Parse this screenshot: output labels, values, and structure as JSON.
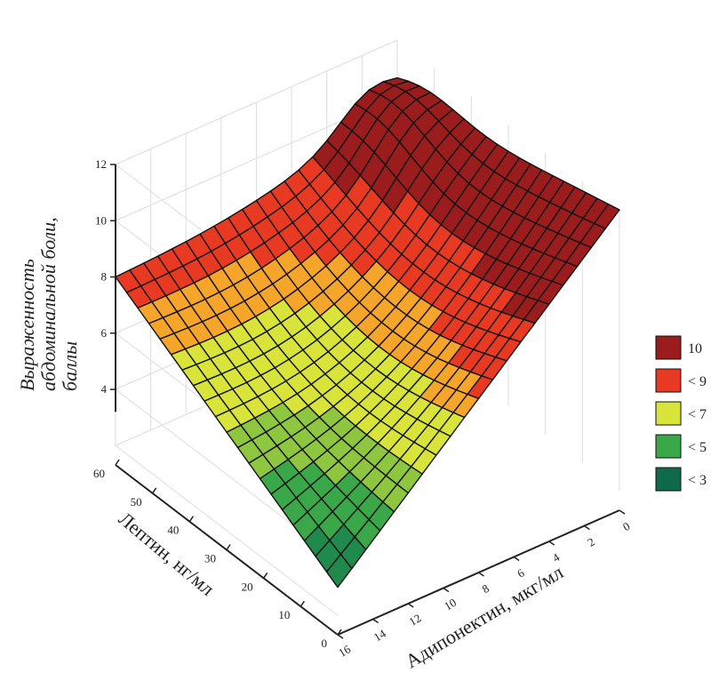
{
  "chart_data": {
    "type": "surface3d",
    "title": "",
    "xlabel": "Адипонектин, мкг/мл",
    "ylabel": "Лептин, нг/мл",
    "zlabel_lines": [
      "Выраженность",
      "абдоминальной боли,",
      "баллы"
    ],
    "x_range": [
      0,
      16
    ],
    "y_range": [
      0,
      60
    ],
    "z_range": [
      2,
      12
    ],
    "x_ticks": [
      "0",
      "2",
      "4",
      "6",
      "8",
      "10",
      "12",
      "14",
      "16"
    ],
    "y_ticks": [
      "0",
      "10",
      "20",
      "30",
      "40",
      "50",
      "60"
    ],
    "z_ticks": [
      "4",
      "6",
      "8",
      "10",
      "12"
    ],
    "corner_values": [
      {
        "adiponectin": 16,
        "leptin": 0,
        "pain": 3.0
      },
      {
        "adiponectin": 0,
        "leptin": 0,
        "pain": 12.0
      },
      {
        "adiponectin": 0,
        "leptin": 60,
        "pain": 10.0
      },
      {
        "adiponectin": 16,
        "leptin": 60,
        "pain": 8.0
      }
    ],
    "legend": [
      {
        "label": "10",
        "color": "#9b1c1c"
      },
      {
        "label": "< 9",
        "color": "#e83a22"
      },
      {
        "label": "< 7",
        "color": "#d8e43a"
      },
      {
        "label": "< 5",
        "color": "#3aa849"
      },
      {
        "label": "< 3",
        "color": "#0e6a4a"
      }
    ],
    "grid": true
  }
}
